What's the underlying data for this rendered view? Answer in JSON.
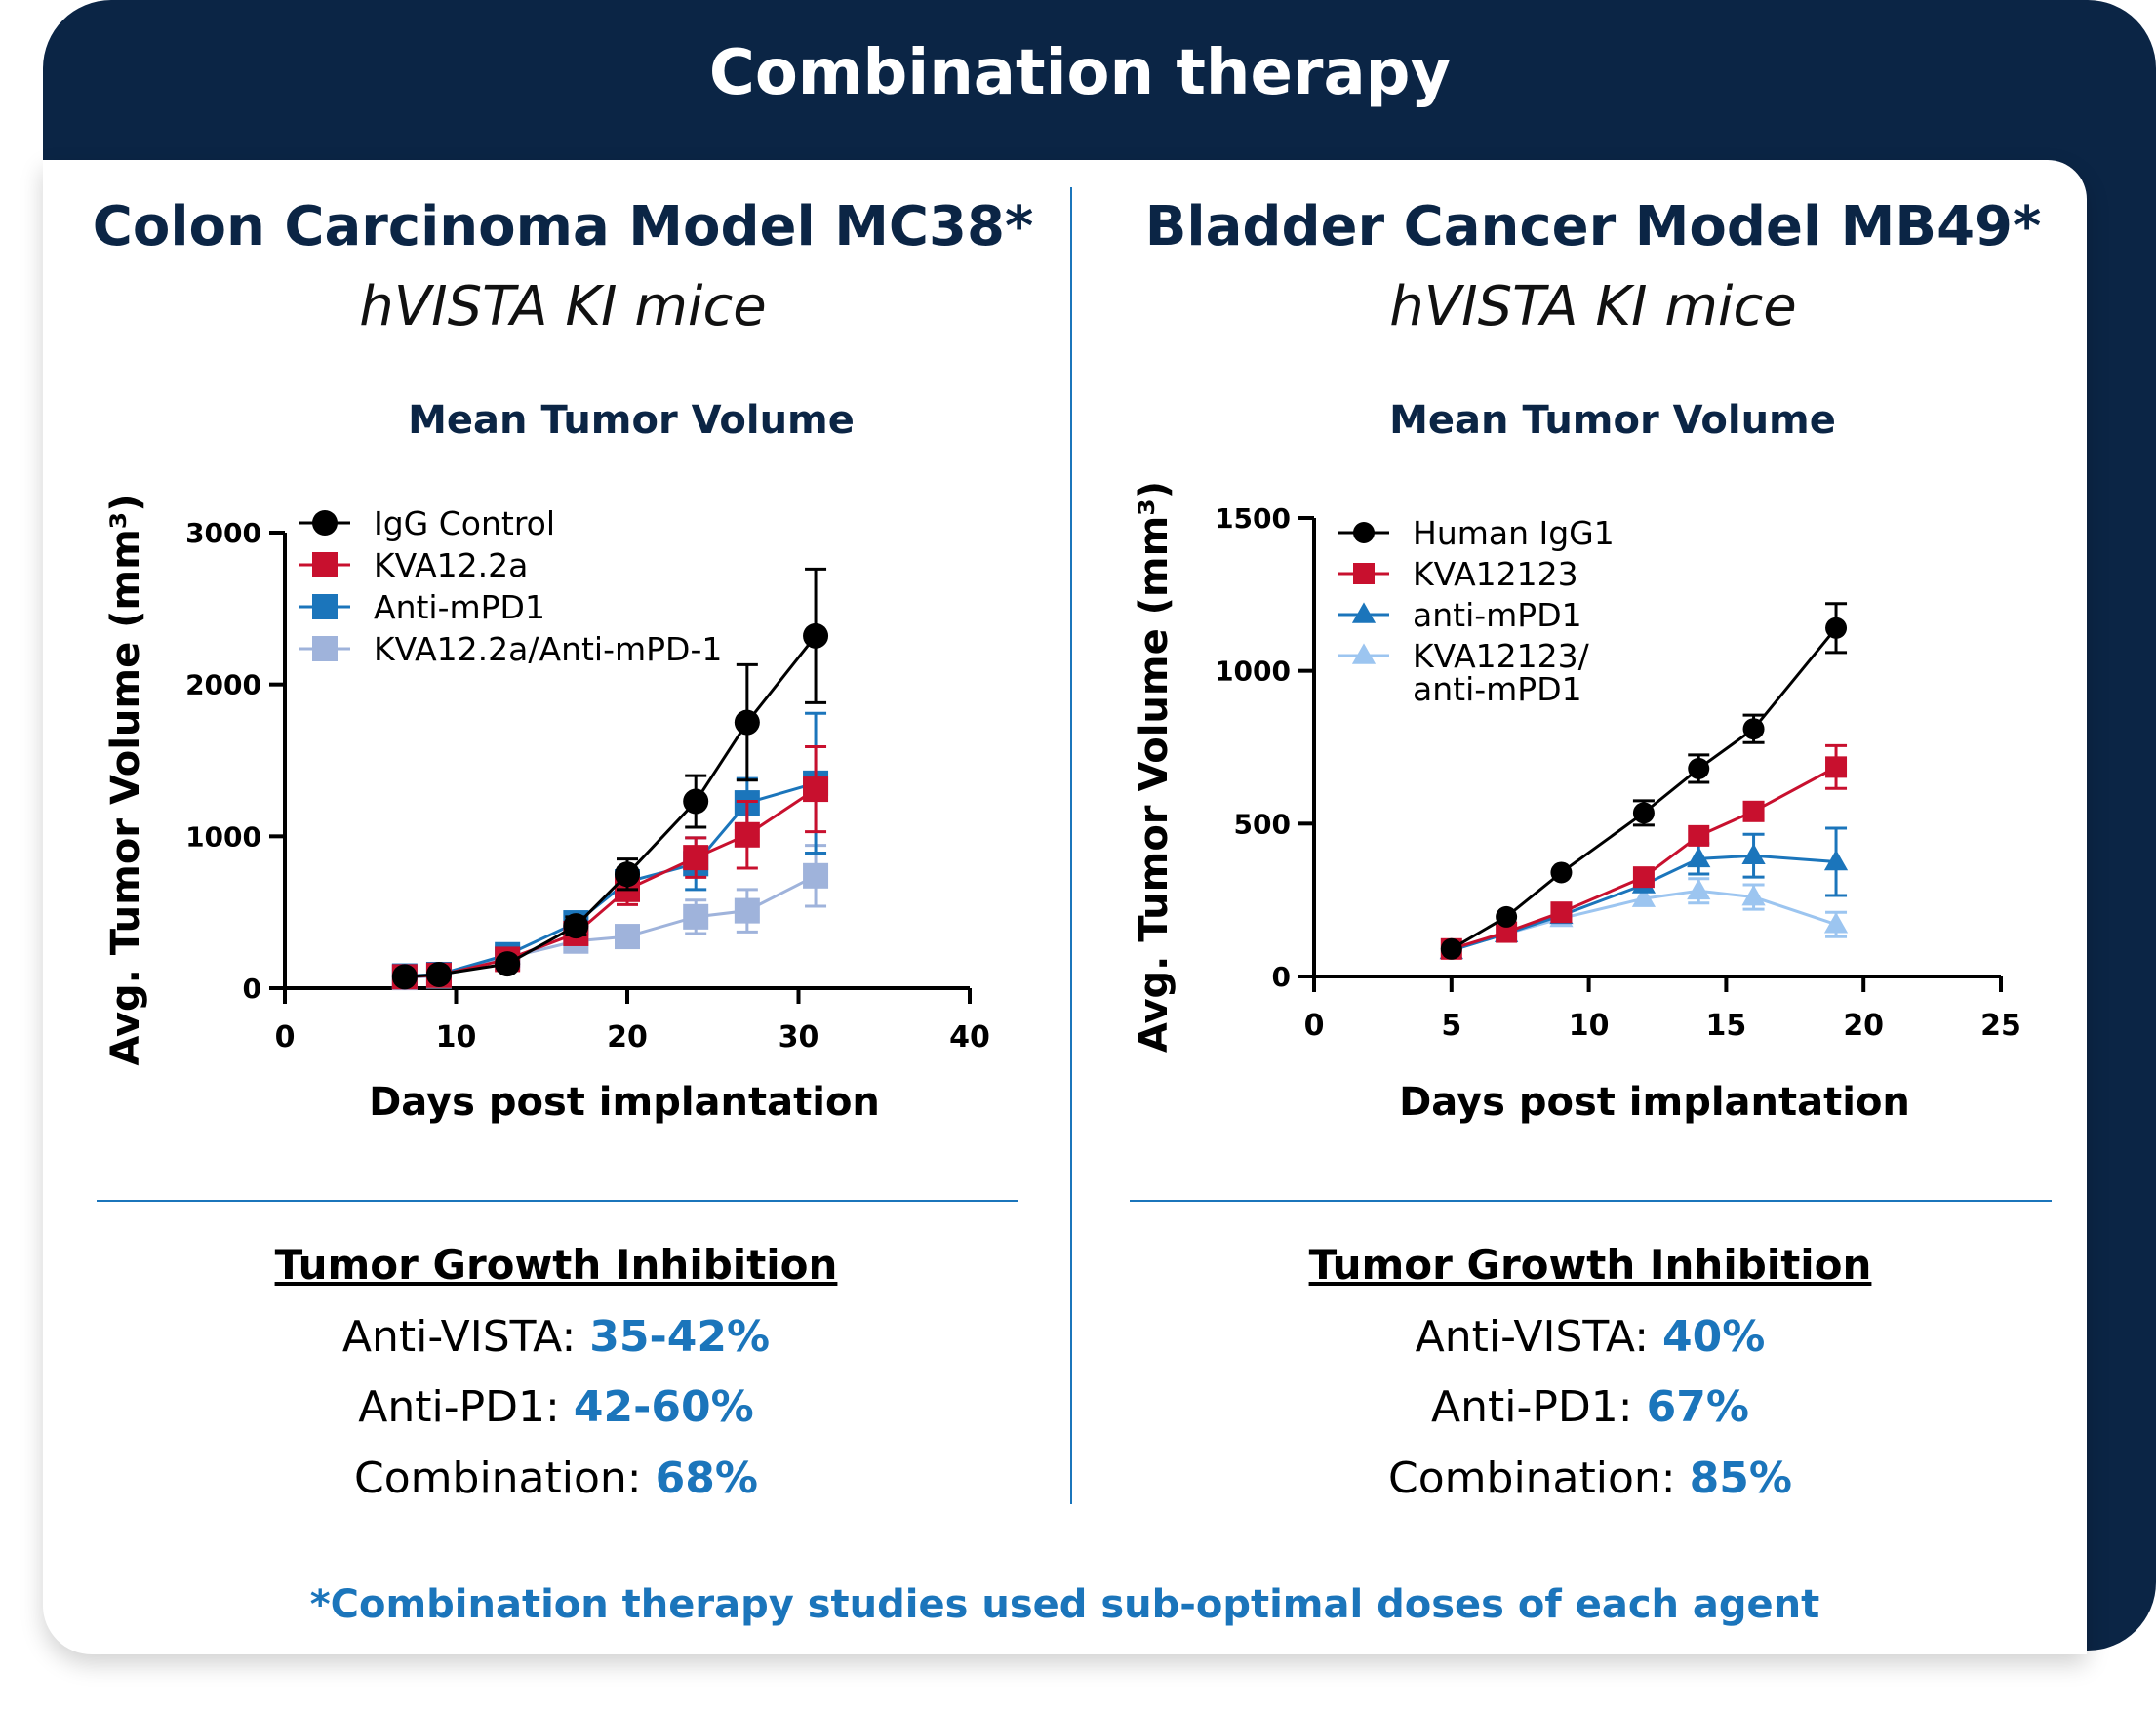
{
  "header": {
    "title": "Combination therapy"
  },
  "footnote": "*Combination therapy studies used sub-optimal doses of each agent",
  "colors": {
    "navy": "#0b2545",
    "accent": "#1b75bb",
    "black": "#000000",
    "red": "#c8102e",
    "blue": "#1b75bb",
    "lightblue": "#9fb3db",
    "paleblue": "#9cc5f0"
  },
  "left": {
    "title": "Colon Carcinoma Model MC38*",
    "subtitle": "hVISTA KI mice",
    "tgi": {
      "heading": "Tumor Growth Inhibition",
      "rows": [
        {
          "label": "Anti-VISTA:",
          "value": "35-42%"
        },
        {
          "label": "Anti-PD1:",
          "value": "42-60%"
        },
        {
          "label": "Combination:",
          "value": "68%"
        }
      ]
    }
  },
  "right": {
    "title": "Bladder Cancer Model MB49*",
    "subtitle": "hVISTA KI mice",
    "tgi": {
      "heading": "Tumor Growth Inhibition",
      "rows": [
        {
          "label": "Anti-VISTA:",
          "value": "40%"
        },
        {
          "label": "Anti-PD1:",
          "value": "67%"
        },
        {
          "label": "Combination:",
          "value": "85%"
        }
      ]
    }
  },
  "chart_data": [
    {
      "type": "line",
      "title": "Mean Tumor Volume",
      "xlabel": "Days post implantation",
      "ylabel": "Avg. Tumor Volume (mm³)",
      "xlim": [
        0,
        40
      ],
      "ylim": [
        0,
        3000
      ],
      "xticks": [
        0,
        10,
        20,
        30,
        40
      ],
      "yticks": [
        0,
        1000,
        2000,
        3000
      ],
      "legend_position": "top-left",
      "series": [
        {
          "name": "IgG Control",
          "marker": "circle",
          "color_key": "black",
          "x": [
            7,
            9,
            13,
            17,
            20,
            24,
            27,
            31
          ],
          "y": [
            75,
            90,
            160,
            410,
            750,
            1230,
            1750,
            2320
          ],
          "err": [
            0,
            0,
            0,
            60,
            100,
            170,
            380,
            440
          ]
        },
        {
          "name": "KVA12.2a",
          "marker": "square",
          "color_key": "red",
          "x": [
            7,
            9,
            13,
            17,
            20,
            24,
            27,
            31
          ],
          "y": [
            75,
            85,
            190,
            360,
            650,
            860,
            1010,
            1310
          ],
          "err": [
            0,
            0,
            0,
            50,
            100,
            130,
            220,
            280
          ]
        },
        {
          "name": "Anti-mPD1",
          "marker": "square",
          "color_key": "blue",
          "x": [
            7,
            9,
            13,
            17,
            20,
            24,
            27,
            31
          ],
          "y": [
            80,
            90,
            220,
            430,
            700,
            820,
            1220,
            1350
          ],
          "err": [
            0,
            0,
            0,
            60,
            90,
            170,
            160,
            460
          ]
        },
        {
          "name": "KVA12.2a/Anti-mPD-1",
          "marker": "square",
          "color_key": "lightblue",
          "x": [
            7,
            9,
            13,
            17,
            20,
            24,
            27,
            31
          ],
          "y": [
            70,
            80,
            200,
            310,
            340,
            470,
            510,
            740
          ],
          "err": [
            0,
            0,
            0,
            30,
            40,
            110,
            140,
            200
          ]
        }
      ]
    },
    {
      "type": "line",
      "title": "Mean Tumor Volume",
      "xlabel": "Days post implantation",
      "ylabel": "Avg. Tumor Volume (mm³)",
      "xlim": [
        0,
        25
      ],
      "ylim": [
        0,
        1500
      ],
      "xticks": [
        0,
        5,
        10,
        15,
        20,
        25
      ],
      "yticks": [
        0,
        500,
        1000,
        1500
      ],
      "legend_position": "top-left",
      "series": [
        {
          "name": "Human IgG1",
          "marker": "circle",
          "color_key": "black",
          "x": [
            5,
            7,
            9,
            12,
            14,
            16,
            19
          ],
          "y": [
            90,
            195,
            340,
            535,
            680,
            810,
            1140
          ],
          "err": [
            0,
            0,
            0,
            40,
            45,
            45,
            80
          ]
        },
        {
          "name": "KVA12123",
          "marker": "square",
          "color_key": "red",
          "x": [
            5,
            7,
            9,
            12,
            14,
            16,
            19
          ],
          "y": [
            90,
            145,
            210,
            325,
            460,
            540,
            685
          ],
          "err": [
            0,
            0,
            0,
            0,
            0,
            0,
            70
          ]
        },
        {
          "name": "anti-mPD1",
          "marker": "triangle",
          "color_key": "blue",
          "x": [
            5,
            7,
            9,
            12,
            14,
            16,
            19
          ],
          "y": [
            85,
            140,
            200,
            300,
            385,
            395,
            375
          ],
          "err": [
            0,
            0,
            0,
            0,
            50,
            70,
            110
          ]
        },
        {
          "name": "KVA12123/\nanti-mPD1",
          "marker": "triangle",
          "color_key": "paleblue",
          "x": [
            5,
            7,
            9,
            12,
            14,
            16,
            19
          ],
          "y": [
            85,
            140,
            190,
            255,
            280,
            260,
            170
          ],
          "err": [
            0,
            0,
            0,
            0,
            40,
            40,
            40
          ]
        }
      ]
    }
  ]
}
